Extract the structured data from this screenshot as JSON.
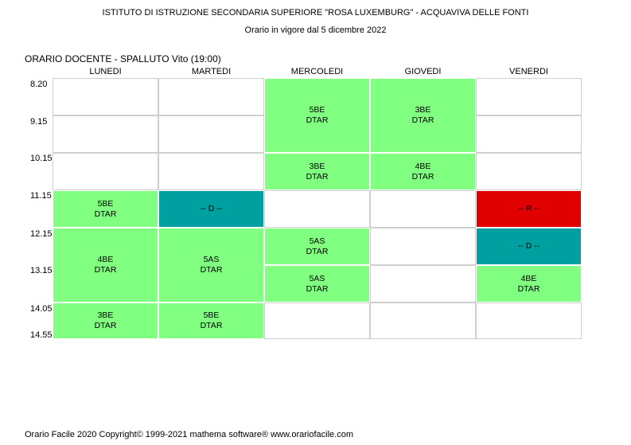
{
  "header": {
    "school": "ISTITUTO DI ISTRUZIONE SECONDARIA SUPERIORE \"ROSA LUXEMBURG\" - ACQUAVIVA DELLE FONTI",
    "validity": "Orario in vigore dal 5 dicembre 2022",
    "teacher_line": "ORARIO DOCENTE   -  SPALLUTO Vito  (19:00)"
  },
  "days": [
    "LUNEDI",
    "MARTEDI",
    "MERCOLEDI",
    "GIOVEDI",
    "VENERDI"
  ],
  "times": [
    "8.20",
    "9.15",
    "10.15",
    "11.15",
    "12.15",
    "13.15",
    "14.05",
    "14.55"
  ],
  "colors": {
    "lesson": "#80ff80",
    "disposizione": "#00a0a0",
    "ricevimento": "#e00000"
  },
  "lessons": [
    {
      "day": 0,
      "start": 3,
      "span": 1,
      "line1": "5BE",
      "line2": "DTAR",
      "kind": "lesson"
    },
    {
      "day": 0,
      "start": 4,
      "span": 2,
      "line1": "4BE",
      "line2": "DTAR",
      "kind": "lesson"
    },
    {
      "day": 0,
      "start": 6,
      "span": 1,
      "line1": "3BE",
      "line2": "DTAR",
      "kind": "lesson"
    },
    {
      "day": 1,
      "start": 3,
      "span": 1,
      "line1": "-- D --",
      "line2": "",
      "kind": "disposizione"
    },
    {
      "day": 1,
      "start": 4,
      "span": 2,
      "line1": "5AS",
      "line2": "DTAR",
      "kind": "lesson"
    },
    {
      "day": 1,
      "start": 6,
      "span": 1,
      "line1": "5BE",
      "line2": "DTAR",
      "kind": "lesson"
    },
    {
      "day": 2,
      "start": 0,
      "span": 2,
      "line1": "5BE",
      "line2": "DTAR",
      "kind": "lesson"
    },
    {
      "day": 2,
      "start": 2,
      "span": 1,
      "line1": "3BE",
      "line2": "DTAR",
      "kind": "lesson"
    },
    {
      "day": 2,
      "start": 4,
      "span": 1,
      "line1": "5AS",
      "line2": "DTAR",
      "kind": "lesson"
    },
    {
      "day": 2,
      "start": 5,
      "span": 1,
      "line1": "5AS",
      "line2": "DTAR",
      "kind": "lesson"
    },
    {
      "day": 3,
      "start": 0,
      "span": 2,
      "line1": "3BE",
      "line2": "DTAR",
      "kind": "lesson"
    },
    {
      "day": 3,
      "start": 2,
      "span": 1,
      "line1": "4BE",
      "line2": "DTAR",
      "kind": "lesson"
    },
    {
      "day": 4,
      "start": 3,
      "span": 1,
      "line1": "-- R --",
      "line2": "",
      "kind": "ricevimento"
    },
    {
      "day": 4,
      "start": 4,
      "span": 1,
      "line1": "-- D --",
      "line2": "",
      "kind": "disposizione"
    },
    {
      "day": 4,
      "start": 5,
      "span": 1,
      "line1": "4BE",
      "line2": "DTAR",
      "kind": "lesson"
    }
  ],
  "footer": "Orario Facile 2020  Copyright© 1999-2021 mathema software®     www.orariofacile.com"
}
